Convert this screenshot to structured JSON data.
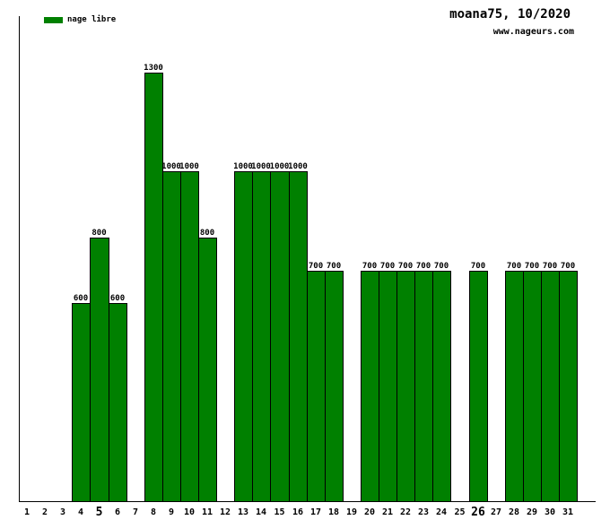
{
  "title": "moana75, 10/2020",
  "website": "www.nageurs.com",
  "legend": {
    "label": "nage libre",
    "color": "#008000"
  },
  "chart_data": {
    "type": "bar",
    "title": "moana75, 10/2020",
    "series_name": "nage libre",
    "categories": [
      1,
      2,
      3,
      4,
      5,
      6,
      7,
      8,
      9,
      10,
      11,
      12,
      13,
      14,
      15,
      16,
      17,
      18,
      19,
      20,
      21,
      22,
      23,
      24,
      25,
      26,
      27,
      28,
      29,
      30,
      31
    ],
    "values": [
      null,
      null,
      null,
      600,
      800,
      600,
      null,
      1300,
      1000,
      1000,
      800,
      null,
      1000,
      1000,
      1000,
      1000,
      700,
      700,
      null,
      700,
      700,
      700,
      700,
      700,
      null,
      700,
      null,
      700,
      700,
      700,
      700
    ],
    "bold_ticks": [
      5,
      26
    ],
    "bar_color": "#008000",
    "bar_border_color": "#000000",
    "value_labels_shown": true,
    "xlabel": "",
    "ylabel": "",
    "ylim": [
      0,
      1470
    ],
    "grid": false,
    "legend_position": "top-left"
  }
}
